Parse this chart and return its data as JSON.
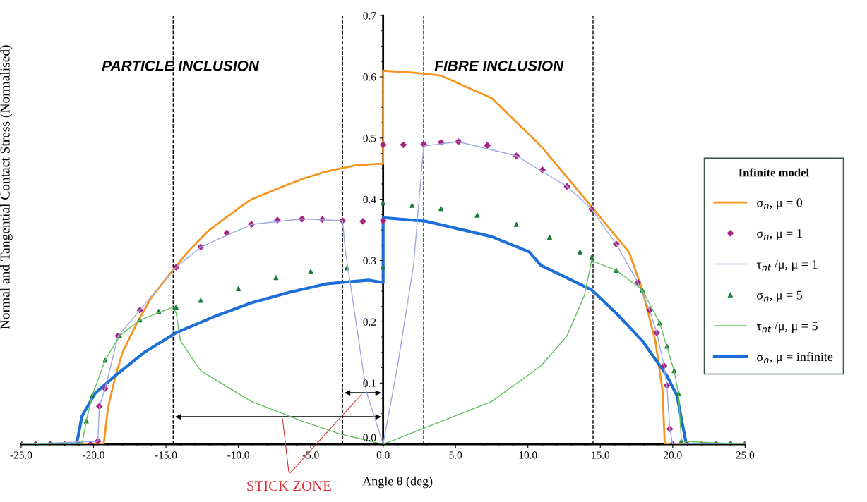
{
  "chart_data": {
    "type": "line",
    "xlabel": "Angle θ (deg)",
    "ylabel": "Normal and Tangential Contact Stress (Normalised)",
    "legend_title": "Infinite model",
    "legend": "right",
    "grid": false,
    "xlim": [
      -25,
      25
    ],
    "ylim": [
      0,
      0.7
    ],
    "xticks": [
      {
        "value": -25,
        "label": "-25.0"
      },
      {
        "value": -20,
        "label": "-20.0"
      },
      {
        "value": -15,
        "label": "-15.0"
      },
      {
        "value": -10,
        "label": "-10.0"
      },
      {
        "value": -5,
        "label": "-5.0"
      },
      {
        "value": 0,
        "label": "0.0"
      },
      {
        "value": 5,
        "label": "5.0"
      },
      {
        "value": 10,
        "label": "10.0"
      },
      {
        "value": 15,
        "label": "15.0"
      },
      {
        "value": 20,
        "label": "20.0"
      },
      {
        "value": 25,
        "label": "25.0"
      }
    ],
    "yticks": [
      {
        "value": 0,
        "label": "0.0"
      },
      {
        "value": 0.1,
        "label": "0.1"
      },
      {
        "value": 0.2,
        "label": "0.2"
      },
      {
        "value": 0.3,
        "label": "0.3"
      },
      {
        "value": 0.4,
        "label": "0.4"
      },
      {
        "value": 0.5,
        "label": "0.5"
      },
      {
        "value": 0.6,
        "label": "0.6"
      },
      {
        "value": 0.7,
        "label": "0.7"
      }
    ],
    "annotations": [
      "PARTICLE INCLUSION",
      "FIBRE INCLUSION",
      "STICK ZONE"
    ],
    "ref_lines": [
      {
        "axis": "x",
        "value": -14.5,
        "color": "#000000",
        "line_style": "dashed"
      },
      {
        "axis": "x",
        "value": -2.8,
        "color": "#000000",
        "line_style": "dashed"
      },
      {
        "axis": "x",
        "value": 2.8,
        "color": "#000000",
        "line_style": "dashed"
      },
      {
        "axis": "x",
        "value": 14.5,
        "color": "#000000",
        "line_style": "dashed"
      }
    ],
    "series": [
      {
        "name": "σ$_{n}$, μ = 0",
        "color": "#f7941d",
        "marker": "none",
        "x": [
          -25,
          -19.4,
          -19.3,
          -19.0,
          -18.5,
          -18,
          -17,
          -16,
          -15,
          -13.5,
          -12,
          -10,
          -9.1,
          -7,
          -5.6,
          -4,
          -2,
          -0.4,
          0,
          0,
          2,
          4.0,
          7.5,
          10.9,
          14.4,
          17.0,
          17.9,
          18.8,
          19.3,
          19.45,
          25
        ],
        "values": [
          0,
          0,
          0,
          0.06,
          0.11,
          0.15,
          0.198,
          0.24,
          0.27,
          0.314,
          0.35,
          0.385,
          0.4,
          0.42,
          0.433,
          0.445,
          0.455,
          0.458,
          0.458,
          0.61,
          0.607,
          0.602,
          0.565,
          0.487,
          0.388,
          0.313,
          0.252,
          0.169,
          0.087,
          0,
          0
        ]
      },
      {
        "name": "σ$_{n}$, μ = 1",
        "type": "scatter",
        "color": "#a8247f",
        "marker": "diamond",
        "x": [
          -25,
          -24,
          -23,
          -22,
          -21,
          -20.2,
          -19.7,
          -19.6,
          -19.2,
          -18.3,
          -16.8,
          -14.3,
          -12.6,
          -10.8,
          -9.1,
          -7.3,
          -5.6,
          -4.2,
          -2.8,
          -1.4,
          0,
          0,
          1.4,
          2.8,
          4.0,
          5.2,
          7.2,
          9.2,
          11.0,
          12.7,
          14.4,
          16.1,
          17.6,
          18.4,
          18.9,
          19.4,
          19.6,
          19.8,
          20.0,
          21,
          22,
          23,
          24,
          25
        ],
        "values": [
          0,
          0,
          0,
          0,
          0,
          0,
          0.005,
          0.062,
          0.091,
          0.177,
          0.219,
          0.289,
          0.322,
          0.345,
          0.359,
          0.366,
          0.368,
          0.367,
          0.365,
          0.364,
          0.365,
          0.489,
          0.489,
          0.49,
          0.493,
          0.494,
          0.488,
          0.471,
          0.448,
          0.421,
          0.384,
          0.327,
          0.264,
          0.219,
          0.182,
          0.128,
          0.096,
          0.025,
          0,
          0,
          0,
          0,
          0,
          0
        ]
      },
      {
        "name": "τ$_{nt}$ /μ, μ = 1",
        "color": "#9fa8e0",
        "marker": "none",
        "x": [
          -25,
          -19.7,
          -19.6,
          -19.2,
          -18.3,
          -16.8,
          -14.3,
          -12.6,
          -9.1,
          -5.6,
          -2.8,
          -2.6,
          -2.2,
          -1.17,
          0,
          1.0,
          2.1,
          2.8,
          5.2,
          9.2,
          12.7,
          14.4,
          16.1,
          17.6,
          18.4,
          18.9,
          19.4,
          19.6,
          19.8,
          20.0,
          25
        ],
        "values": [
          0,
          0.005,
          0.062,
          0.091,
          0.177,
          0.219,
          0.289,
          0.322,
          0.359,
          0.368,
          0.365,
          0.314,
          0.252,
          0.087,
          0,
          0.128,
          0.292,
          0.487,
          0.494,
          0.471,
          0.421,
          0.384,
          0.327,
          0.264,
          0.219,
          0.182,
          0.128,
          0.096,
          0.025,
          0,
          0
        ]
      },
      {
        "name": "σ$_{n}$, μ = 5",
        "type": "scatter",
        "color": "#1a7a3a",
        "marker": "triangle",
        "x": [
          -25,
          -24,
          -23,
          -22,
          -21,
          -20.8,
          -20.5,
          -20.1,
          -19.2,
          -18.2,
          -16.8,
          -15.5,
          -14.3,
          -12.6,
          -10.0,
          -7.4,
          -5.0,
          -2.5,
          0,
          0,
          2.0,
          4.0,
          6.5,
          9.2,
          11.5,
          13.6,
          14.4,
          16.1,
          17.9,
          19.1,
          19.6,
          20.1,
          20.4,
          20.6,
          21,
          22,
          23,
          24,
          25
        ],
        "values": [
          0,
          0,
          0,
          0,
          0,
          0,
          0.038,
          0.079,
          0.137,
          0.177,
          0.203,
          0.217,
          0.224,
          0.235,
          0.254,
          0.272,
          0.282,
          0.288,
          0.289,
          0.394,
          0.39,
          0.385,
          0.374,
          0.359,
          0.338,
          0.314,
          0.305,
          0.284,
          0.252,
          0.198,
          0.16,
          0.12,
          0.083,
          0.005,
          0,
          0,
          0,
          0,
          0
        ]
      },
      {
        "name": "τ$_{nt}$ /μ, μ = 5",
        "color": "#5fc15a",
        "marker": "none",
        "x": [
          -25,
          -20.8,
          -20.5,
          -20.1,
          -19.2,
          -18.2,
          -16.8,
          -14.5,
          -14.3,
          -14.0,
          -12.6,
          -9.1,
          -5.6,
          -3.0,
          0,
          3.0,
          7.5,
          10.9,
          12.7,
          13.9,
          14.4,
          16.1,
          17.9,
          19.1,
          20.1,
          20.4,
          20.6,
          25
        ],
        "values": [
          0,
          0,
          0.038,
          0.079,
          0.137,
          0.177,
          0.203,
          0.224,
          0.214,
          0.169,
          0.12,
          0.07,
          0.038,
          0.017,
          0,
          0.028,
          0.07,
          0.128,
          0.177,
          0.243,
          0.3,
          0.284,
          0.252,
          0.198,
          0.12,
          0.083,
          0.005,
          0
        ]
      },
      {
        "name": "σ$_{n}$, μ = infinite",
        "color": "#1c6fd9",
        "marker": "none",
        "x": [
          -25,
          -21.2,
          -21.1,
          -20.8,
          -19.9,
          -18.5,
          -16.5,
          -14.3,
          -11.5,
          -9.1,
          -6.5,
          -3.9,
          -1.0,
          0,
          0,
          3.0,
          7.5,
          10.1,
          10.9,
          14.4,
          16.1,
          17.9,
          19.6,
          20.3,
          20.9,
          21.0,
          25
        ],
        "values": [
          0,
          0,
          0.009,
          0.046,
          0.083,
          0.112,
          0.15,
          0.182,
          0.21,
          0.231,
          0.248,
          0.262,
          0.268,
          0.264,
          0.37,
          0.364,
          0.339,
          0.314,
          0.292,
          0.252,
          0.214,
          0.169,
          0.112,
          0.079,
          0.005,
          0,
          0
        ]
      }
    ]
  }
}
